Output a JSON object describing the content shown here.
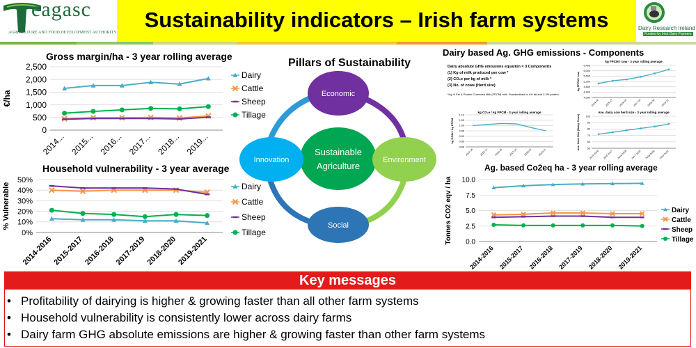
{
  "title": "Sustainability indicators – Irish farm systems",
  "logos": {
    "teagasc_name": "eagasc",
    "teagasc_sub": "Agriculture and Food Development Authority",
    "dri_name": "Dairy Research Ireland",
    "dri_sub": "Funded by Irish Dairy Farmers"
  },
  "colors": {
    "dairy": "#4bacc6",
    "cattle": "#f79646",
    "sheep": "#7030a0",
    "tillage": "#00b050",
    "key_red": "#e31b1b"
  },
  "pillars": {
    "title": "Pillars of Sustainability",
    "center": [
      "Sustainable",
      "Agriculture"
    ],
    "economic": "Economic",
    "environment": "Environment",
    "social": "Social",
    "innovation": "Innovation"
  },
  "dairy_ghg": {
    "title": "Dairy based Ag. GHG emissions -  Components",
    "equation_title": "Dairy absolute GHG emissions equation = 3 Components",
    "components": [
      "(1)  Kg of milk produced per cow *",
      "(2)  CO₂e per kg of milk *",
      "(3)  No. of cows (Herd size)"
    ],
    "footnote": "*Kg of Fat & Protein Corrected Milk (FPCM) milk.  Standardised to 4% fat and 3.3% protein."
  },
  "key_messages": {
    "title": "Key messages",
    "bullet": "•",
    "items": [
      "Profitability of dairying is higher & growing faster than all other farm systems",
      "Household vulnerability is consistently lower across dairy farms",
      "Dairy farm GHG absolute emissions are higher & growing faster than other farm systems"
    ]
  },
  "chart_data": [
    {
      "id": "gross-margin",
      "type": "line",
      "title": "Gross margin/ha - 3 year rolling average",
      "ylabel": "€/ha",
      "categories": [
        "2014...",
        "2015...",
        "2016...",
        "2017...",
        "2018...",
        "2019..."
      ],
      "ylim": [
        0,
        2500
      ],
      "yticks": [
        "0",
        "500",
        "1,000",
        "1,500",
        "2,000",
        "2,500"
      ],
      "yticks_values": [
        0,
        500,
        1000,
        1500,
        2000,
        2500
      ],
      "series": [
        {
          "name": "Dairy",
          "marker": "triangle",
          "values": [
            1650,
            1760,
            1760,
            1890,
            1820,
            2040
          ]
        },
        {
          "name": "Cattle",
          "marker": "x",
          "values": [
            450,
            490,
            490,
            500,
            480,
            560
          ]
        },
        {
          "name": "Sheep",
          "marker": "dash",
          "values": [
            430,
            460,
            460,
            460,
            440,
            510
          ]
        },
        {
          "name": "Tillage",
          "marker": "circle",
          "values": [
            670,
            740,
            800,
            860,
            840,
            930
          ]
        }
      ]
    },
    {
      "id": "household-vulnerability",
      "type": "line",
      "title": "Household vulnerability - 3 year average",
      "ylabel": "% Vulnerable",
      "categories": [
        "2014-2016",
        "2015-2017",
        "2016-2018",
        "2017-2019",
        "2018-2020",
        "2019-2021"
      ],
      "ylim": [
        0,
        50
      ],
      "yticks": [
        "0%",
        "10%",
        "20%",
        "30%",
        "40%",
        "50%"
      ],
      "yticks_values": [
        0,
        10,
        20,
        30,
        40,
        50
      ],
      "series": [
        {
          "name": "Dairy",
          "marker": "triangle",
          "values": [
            13,
            12,
            12,
            11,
            11,
            9
          ]
        },
        {
          "name": "Cattle",
          "marker": "x",
          "values": [
            40,
            39,
            40,
            40,
            40,
            38
          ]
        },
        {
          "name": "Sheep",
          "marker": "dash",
          "values": [
            44,
            42,
            42,
            42,
            41,
            36
          ]
        },
        {
          "name": "Tillage",
          "marker": "circle",
          "values": [
            21,
            18,
            17,
            15,
            17,
            16
          ]
        }
      ]
    },
    {
      "id": "milk-per-cow",
      "type": "line",
      "title": "kg FPCM / cow - 3 year rolling average",
      "ylabel": "kg FPCM / cow",
      "categories": [
        "2014-16",
        "2015-17",
        "2016-18",
        "2017-19",
        "2018-20",
        "2019-21"
      ],
      "ylim": [
        4000,
        6400
      ],
      "yticks": [
        "4,000",
        "4,400",
        "4,800",
        "5,200",
        "5,600",
        "6,000",
        "6,400"
      ],
      "yticks_values": [
        4000,
        4400,
        4800,
        5200,
        5600,
        6000,
        6400
      ],
      "series": [
        {
          "name": "",
          "marker": "circle",
          "values": [
            5050,
            5250,
            5350,
            5550,
            5800,
            6100
          ]
        }
      ]
    },
    {
      "id": "co2-per-kg",
      "type": "line",
      "title": "kg CO₂e / kg FPCM - 3 year rolling average",
      "ylabel": "kg CO2e / kg FPCM",
      "categories": [
        "2014-16",
        "2015-17",
        "2016-18",
        "2017-19",
        "2018-20",
        "2019-21"
      ],
      "ylim": [
        0.8,
        1.1
      ],
      "yticks": [
        "0.80",
        "0.85",
        "0.90",
        "0.95",
        "1.00",
        "1.05",
        "1.10"
      ],
      "yticks_values": [
        0.8,
        0.85,
        0.9,
        0.95,
        1.0,
        1.05,
        1.1
      ],
      "series": [
        {
          "name": "",
          "marker": "none",
          "values": [
            1.0,
            1.01,
            1.02,
            1.015,
            0.98,
            0.95
          ]
        }
      ]
    },
    {
      "id": "herd-size",
      "type": "line",
      "title": "Ave. dairy cow herd size - 3 year rolling average",
      "ylabel": "Ave. herd Size (Dairy Cows)",
      "categories": [
        "2014-2016",
        "2015-2017",
        "2016-2018",
        "2017-2019",
        "2018-2020",
        "2019-2021"
      ],
      "ylim": [
        50,
        100
      ],
      "yticks": [
        "50",
        "60",
        "70",
        "80",
        "90",
        "100"
      ],
      "yticks_values": [
        50,
        60,
        70,
        80,
        90,
        100
      ],
      "series": [
        {
          "name": "",
          "marker": "circle",
          "values": [
            72,
            75,
            78,
            81,
            84,
            88
          ]
        }
      ]
    },
    {
      "id": "co2eq-ha",
      "type": "line",
      "title": "Ag. based Co2eq ha - 3 year rolling average",
      "ylabel": "Tonnes CO2 eqv / ha",
      "categories": [
        "2014-2016",
        "2015-2017",
        "2016-2018",
        "2017-2019",
        "2018-2020",
        "2019-2021"
      ],
      "ylim": [
        0,
        10
      ],
      "yticks": [
        "0.0",
        "2.5",
        "5.0",
        "7.5",
        "10.0"
      ],
      "yticks_values": [
        0,
        2.5,
        5,
        7.5,
        10
      ],
      "series": [
        {
          "name": "Dairy",
          "marker": "triangle",
          "values": [
            8.7,
            9.0,
            9.2,
            9.3,
            9.35,
            9.4
          ]
        },
        {
          "name": "Cattle",
          "marker": "x",
          "values": [
            4.3,
            4.4,
            4.6,
            4.6,
            4.5,
            4.5
          ]
        },
        {
          "name": "Sheep",
          "marker": "dash",
          "values": [
            3.9,
            4.0,
            4.1,
            4.1,
            3.9,
            3.9
          ]
        },
        {
          "name": "Tillage",
          "marker": "circle",
          "values": [
            2.7,
            2.6,
            2.6,
            2.6,
            2.6,
            2.5
          ]
        }
      ]
    }
  ]
}
